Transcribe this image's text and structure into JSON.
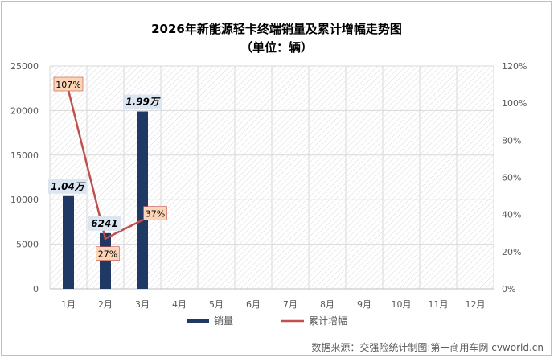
{
  "chart_data": {
    "type": "bar",
    "title": "2026年新能源轻卡终端销量及累计增幅走势图",
    "subtitle": "（单位：辆）",
    "categories": [
      "1月",
      "2月",
      "3月",
      "4月",
      "5月",
      "6月",
      "7月",
      "8月",
      "9月",
      "10月",
      "11月",
      "12月"
    ],
    "series": [
      {
        "name": "销量",
        "type": "bar",
        "axis": "left",
        "color": "#1f3864",
        "values": [
          10400,
          6241,
          19900,
          null,
          null,
          null,
          null,
          null,
          null,
          null,
          null,
          null
        ],
        "labels": [
          "1.04万",
          "6241",
          "1.99万"
        ]
      },
      {
        "name": "累计增幅",
        "type": "line",
        "axis": "right",
        "color": "#c0504d",
        "values": [
          107,
          27,
          37,
          null,
          null,
          null,
          null,
          null,
          null,
          null,
          null,
          null
        ],
        "labels": [
          "107%",
          "27%",
          "37%"
        ]
      }
    ],
    "y_left": {
      "min": 0,
      "max": 25000,
      "ticks": [
        "0",
        "5000",
        "10000",
        "15000",
        "20000",
        "25000"
      ]
    },
    "y_right": {
      "min": 0,
      "max": 120,
      "ticks": [
        "0%",
        "20%",
        "40%",
        "60%",
        "80%",
        "100%",
        "120%"
      ]
    },
    "grid": true,
    "legend_position": "bottom"
  },
  "source": "数据来源：交强险统计制图:第一商用车网 cvworld.cn"
}
